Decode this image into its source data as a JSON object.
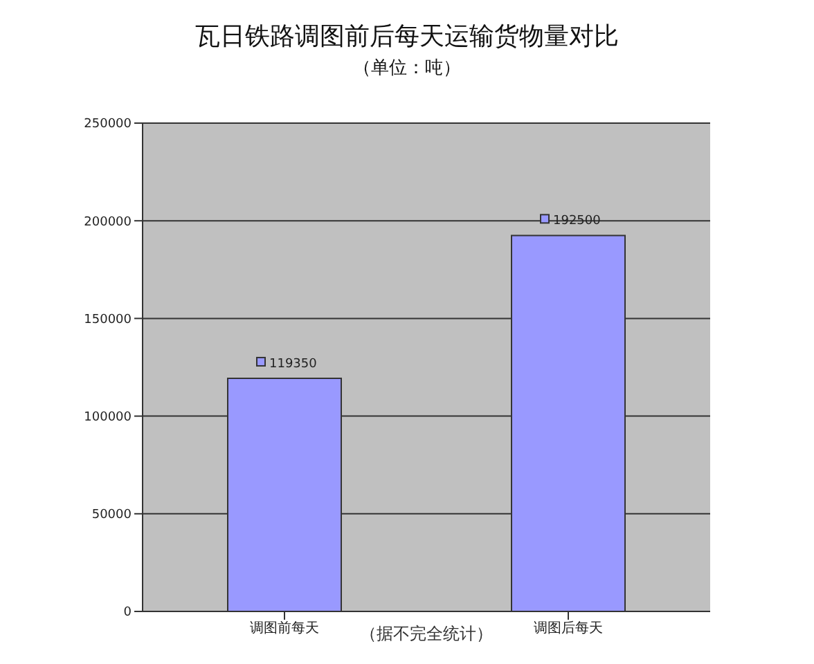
{
  "chart_data": {
    "type": "bar",
    "title": "瓦日铁路调图前后每天运输货物量对比",
    "subtitle": "（单位：吨）",
    "categories": [
      "调图前每天",
      "调图后每天"
    ],
    "values": [
      119350,
      192500
    ],
    "color": "#9999ff",
    "ylim": [
      0,
      250000
    ],
    "yticks": [
      0,
      50000,
      100000,
      150000,
      200000,
      250000
    ],
    "grid": "y",
    "data_labels": true,
    "annotations": [
      "（据不完全统计）"
    ]
  }
}
